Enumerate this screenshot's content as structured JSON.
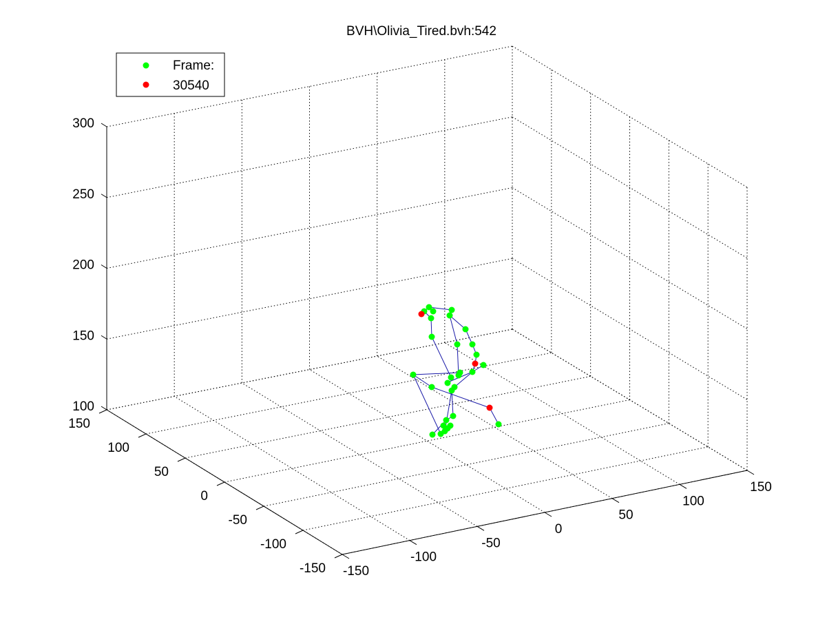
{
  "chart_data": {
    "type": "scatter",
    "title": "BVH\\Olivia_Tired.bvh:542",
    "legend": {
      "placement": "top-left",
      "entries": [
        {
          "label": "Frame:",
          "color": "#00ff00",
          "marker": "dot"
        },
        {
          "label": "30540",
          "color": "#ff0000",
          "marker": "dot"
        }
      ]
    },
    "axes": {
      "x": {
        "range": [
          -150,
          150
        ],
        "ticks": [
          "-150",
          "-100",
          "-50",
          "0",
          "50",
          "100",
          "150"
        ]
      },
      "y": {
        "range": [
          -150,
          150
        ],
        "ticks": [
          "-150",
          "-100",
          "-50",
          "0",
          "50",
          "100",
          "150"
        ]
      },
      "z": {
        "range": [
          100,
          300
        ],
        "ticks": [
          "100",
          "150",
          "200",
          "250",
          "300"
        ]
      }
    },
    "grid": true,
    "colors": {
      "joint": "#00ff00",
      "end_effector": "#ff0000",
      "bone": "#1a1aa8"
    },
    "series": [
      {
        "points": [
          [
            623,
            446
          ],
          [
            629,
            452
          ],
          [
            616,
            452
          ],
          [
            656,
            450
          ],
          [
            626,
            462
          ],
          [
            653,
            458
          ],
          [
            676,
            478
          ],
          [
            686,
            500
          ],
          [
            664,
            500
          ],
          [
            627,
            489
          ],
          [
            692,
            515
          ],
          [
            702,
            530
          ],
          [
            686,
            540
          ],
          [
            666,
            545
          ],
          [
            655,
            548
          ],
          [
            650,
            556
          ],
          [
            660,
            562
          ],
          [
            656,
            567
          ],
          [
            600,
            544
          ],
          [
            627,
            562
          ],
          [
            648,
            610
          ],
          [
            658,
            604
          ],
          [
            644,
            618
          ],
          [
            646,
            626
          ],
          [
            650,
            622
          ],
          [
            654,
            618
          ],
          [
            640,
            630
          ],
          [
            628,
            631
          ],
          [
            724,
            616
          ],
          [
            668,
            541
          ]
        ]
      },
      {
        "points": [
          [
            612,
            456
          ],
          [
            690,
            528
          ],
          [
            711,
            592
          ]
        ]
      }
    ],
    "bones": [
      [
        [
          623,
          446
        ],
        [
          616,
          452
        ]
      ],
      [
        [
          616,
          452
        ],
        [
          626,
          462
        ]
      ],
      [
        [
          626,
          462
        ],
        [
          627,
          489
        ]
      ],
      [
        [
          627,
          489
        ],
        [
          655,
          548
        ]
      ],
      [
        [
          623,
          446
        ],
        [
          656,
          450
        ]
      ],
      [
        [
          656,
          450
        ],
        [
          653,
          458
        ]
      ],
      [
        [
          653,
          458
        ],
        [
          664,
          500
        ]
      ],
      [
        [
          664,
          500
        ],
        [
          666,
          545
        ]
      ],
      [
        [
          653,
          458
        ],
        [
          676,
          478
        ]
      ],
      [
        [
          676,
          478
        ],
        [
          686,
          500
        ]
      ],
      [
        [
          686,
          500
        ],
        [
          692,
          515
        ]
      ],
      [
        [
          692,
          515
        ],
        [
          690,
          528
        ]
      ],
      [
        [
          690,
          528
        ],
        [
          686,
          540
        ]
      ],
      [
        [
          686,
          540
        ],
        [
          660,
          562
        ]
      ],
      [
        [
          686,
          540
        ],
        [
          648,
          556
        ]
      ],
      [
        [
          686,
          540
        ],
        [
          702,
          530
        ]
      ],
      [
        [
          600,
          544
        ],
        [
          668,
          541
        ]
      ],
      [
        [
          600,
          544
        ],
        [
          627,
          562
        ]
      ],
      [
        [
          627,
          562
        ],
        [
          711,
          592
        ]
      ],
      [
        [
          711,
          592
        ],
        [
          724,
          616
        ]
      ],
      [
        [
          600,
          544
        ],
        [
          640,
          630
        ]
      ],
      [
        [
          656,
          567
        ],
        [
          646,
          626
        ]
      ],
      [
        [
          656,
          567
        ],
        [
          658,
          604
        ]
      ],
      [
        [
          658,
          604
        ],
        [
          648,
          610
        ]
      ],
      [
        [
          648,
          610
        ],
        [
          628,
          631
        ]
      ]
    ]
  }
}
